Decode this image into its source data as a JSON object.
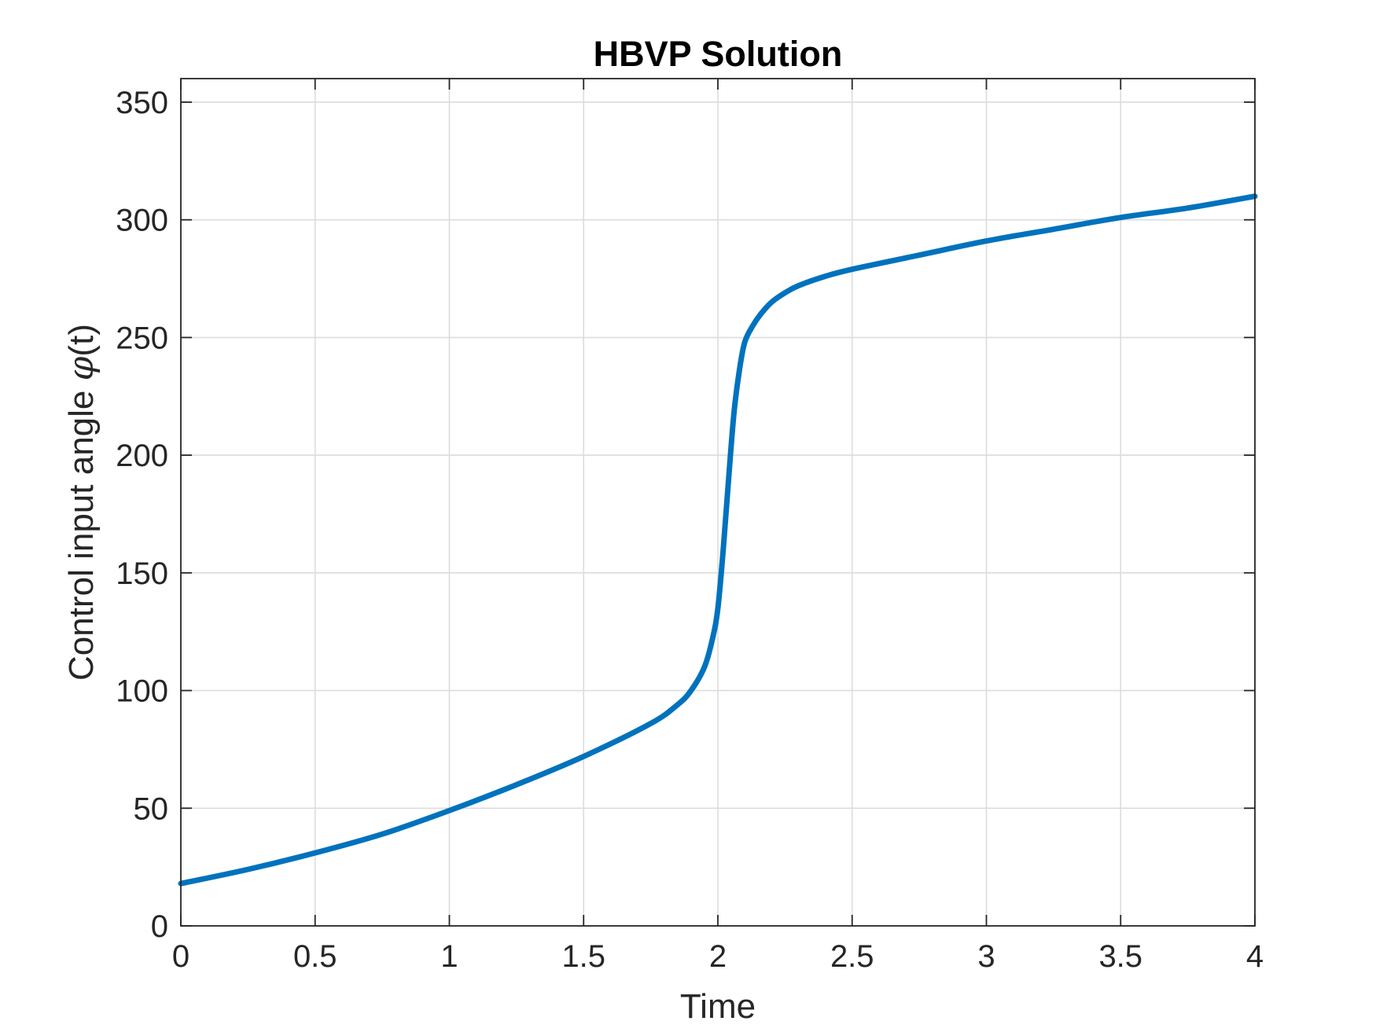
{
  "chart_data": {
    "type": "line",
    "title": "HBVP Solution",
    "xlabel": "Time",
    "ylabel_prefix": "Control input angle ",
    "ylabel_symbol": "φ",
    "ylabel_suffix": "(t)",
    "xlim": [
      0,
      4
    ],
    "ylim": [
      0,
      360
    ],
    "xticks": [
      0,
      0.5,
      1,
      1.5,
      2,
      2.5,
      3,
      3.5,
      4
    ],
    "xtick_labels": [
      "0",
      "0.5",
      "1",
      "1.5",
      "2",
      "2.5",
      "3",
      "3.5",
      "4"
    ],
    "yticks": [
      0,
      50,
      100,
      150,
      200,
      250,
      300,
      350
    ],
    "ytick_labels": [
      "0",
      "50",
      "100",
      "150",
      "200",
      "250",
      "300",
      "350"
    ],
    "grid": true,
    "series": [
      {
        "color": "#0072BD",
        "x": [
          0,
          0.25,
          0.5,
          0.75,
          1.0,
          1.25,
          1.5,
          1.75,
          1.85,
          1.9,
          1.95,
          1.98,
          2.0,
          2.02,
          2.04,
          2.06,
          2.08,
          2.1,
          2.13,
          2.16,
          2.2,
          2.25,
          2.3,
          2.4,
          2.5,
          2.75,
          3.0,
          3.25,
          3.5,
          3.75,
          4.0
        ],
        "y": [
          18,
          24,
          31,
          39,
          49,
          60,
          72,
          86,
          94,
          100,
          110,
          122,
          135,
          160,
          190,
          218,
          236,
          248,
          255,
          260,
          265,
          269,
          272,
          276,
          279,
          285,
          291,
          296,
          301,
          305,
          310
        ]
      }
    ]
  }
}
